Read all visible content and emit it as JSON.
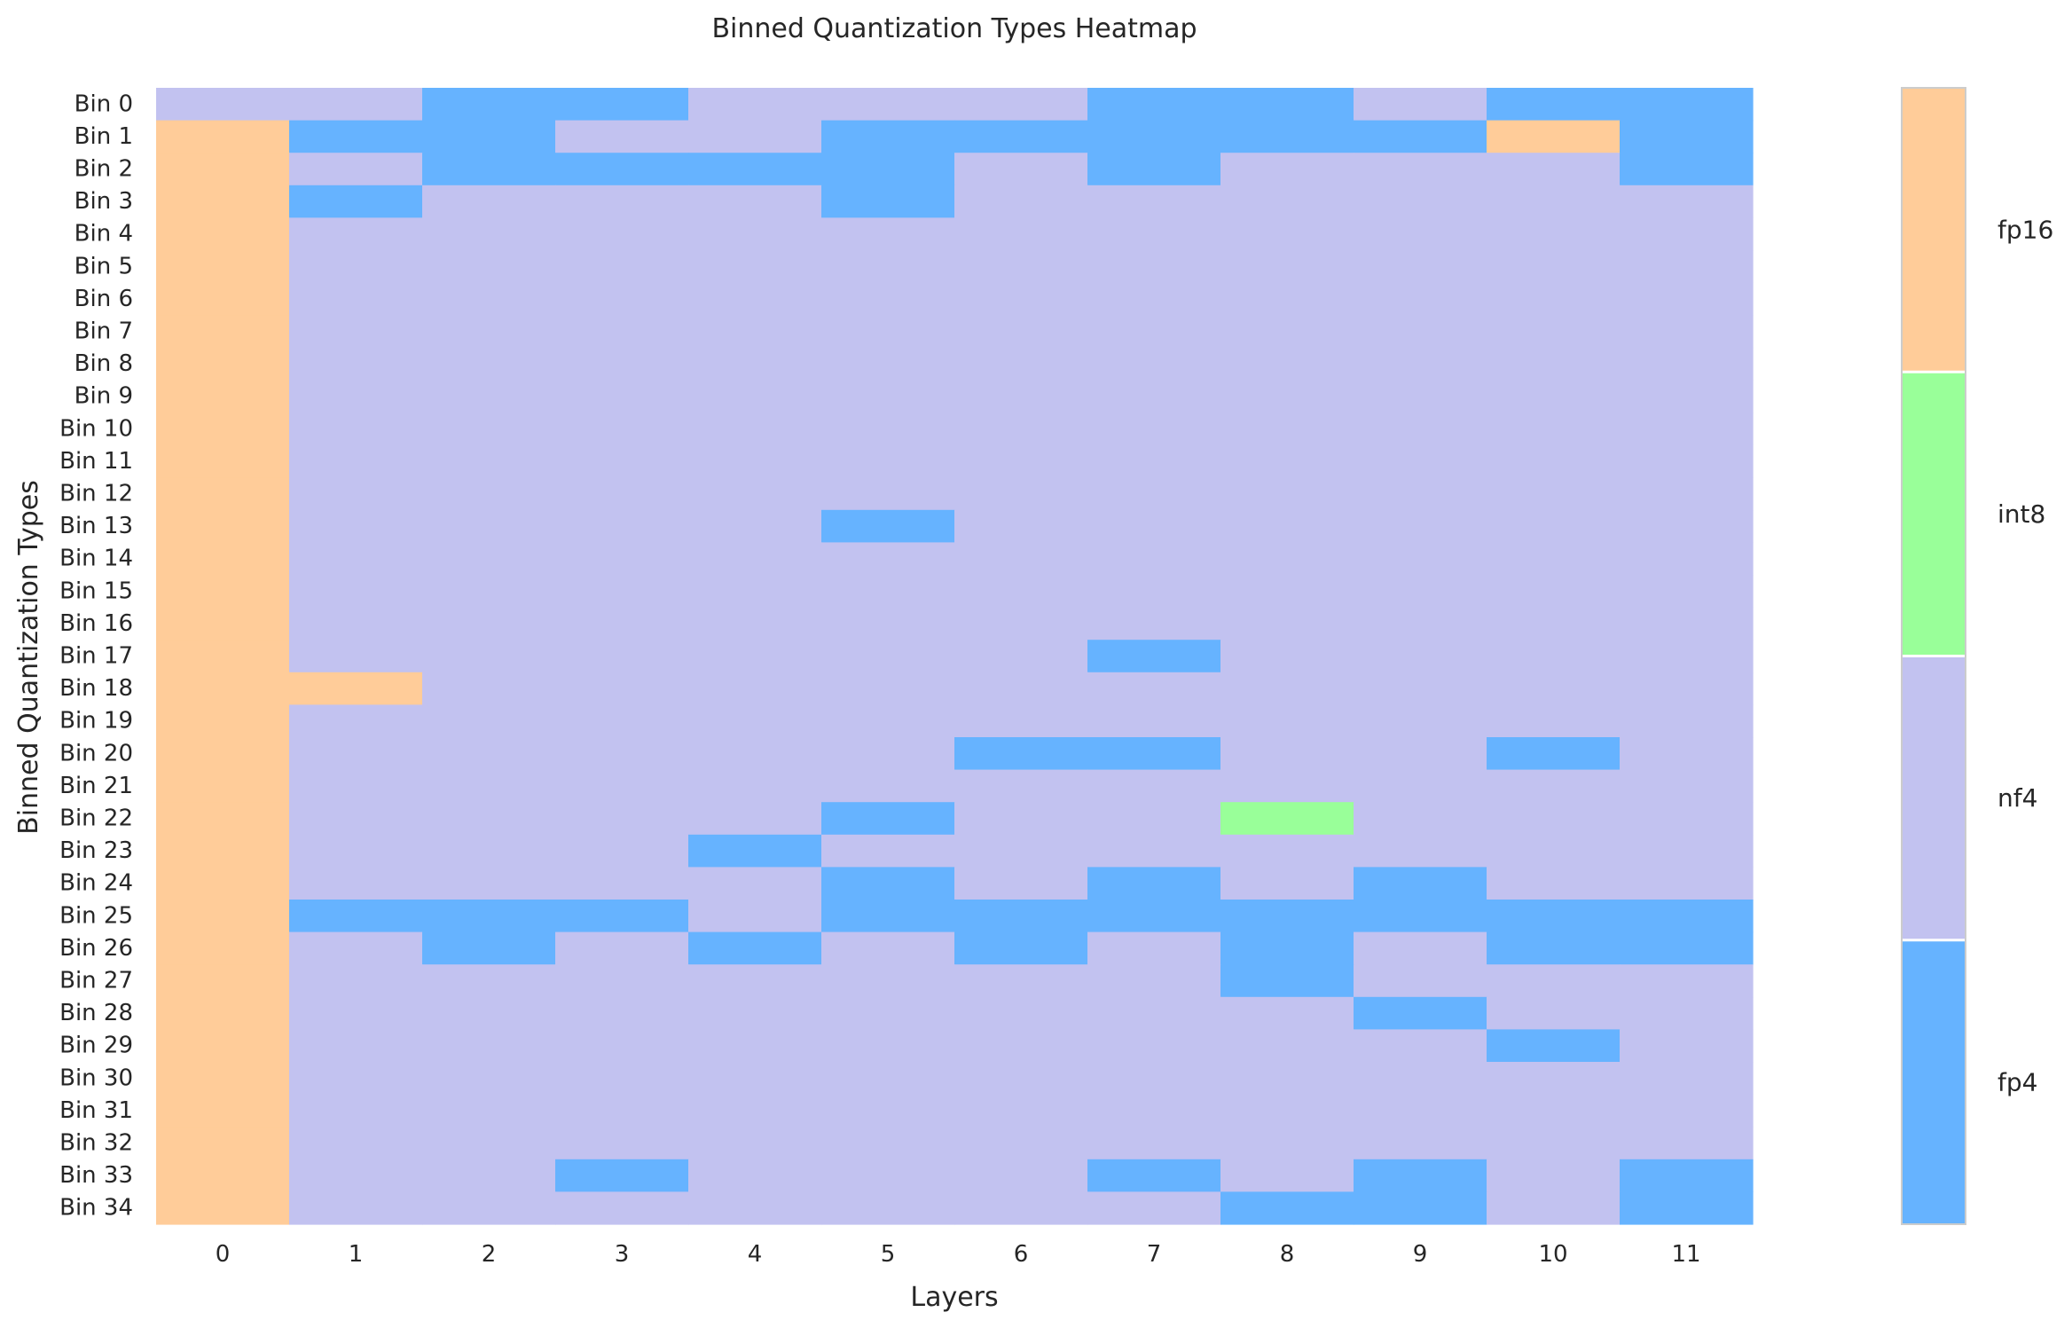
{
  "chart_data": {
    "type": "heatmap",
    "title": "Binned Quantization Types Heatmap",
    "xlabel": "Layers",
    "ylabel": "Binned Quantization Types",
    "x_categories": [
      "0",
      "1",
      "2",
      "3",
      "4",
      "5",
      "6",
      "7",
      "8",
      "9",
      "10",
      "11"
    ],
    "y_categories": [
      "Bin 0",
      "Bin 1",
      "Bin 2",
      "Bin 3",
      "Bin 4",
      "Bin 5",
      "Bin 6",
      "Bin 7",
      "Bin 8",
      "Bin 9",
      "Bin 10",
      "Bin 11",
      "Bin 12",
      "Bin 13",
      "Bin 14",
      "Bin 15",
      "Bin 16",
      "Bin 17",
      "Bin 18",
      "Bin 19",
      "Bin 20",
      "Bin 21",
      "Bin 22",
      "Bin 23",
      "Bin 24",
      "Bin 25",
      "Bin 26",
      "Bin 27",
      "Bin 28",
      "Bin 29",
      "Bin 30",
      "Bin 31",
      "Bin 32",
      "Bin 33",
      "Bin 34"
    ],
    "legend": {
      "placement": "right",
      "entries": [
        {
          "label": "fp16",
          "color": "#ffcc99"
        },
        {
          "label": "int8",
          "color": "#99ff99"
        },
        {
          "label": "nf4",
          "color": "#c2c2f0"
        },
        {
          "label": "fp4",
          "color": "#66b3ff"
        }
      ]
    },
    "grid": false,
    "values": [
      [
        "nf4",
        "nf4",
        "fp4",
        "fp4",
        "nf4",
        "nf4",
        "nf4",
        "fp4",
        "fp4",
        "nf4",
        "fp4",
        "fp4"
      ],
      [
        "fp16",
        "fp4",
        "fp4",
        "nf4",
        "nf4",
        "fp4",
        "fp4",
        "fp4",
        "fp4",
        "fp4",
        "fp16",
        "fp4"
      ],
      [
        "fp16",
        "nf4",
        "fp4",
        "fp4",
        "fp4",
        "fp4",
        "nf4",
        "fp4",
        "nf4",
        "nf4",
        "nf4",
        "fp4"
      ],
      [
        "fp16",
        "fp4",
        "nf4",
        "nf4",
        "nf4",
        "fp4",
        "nf4",
        "nf4",
        "nf4",
        "nf4",
        "nf4",
        "nf4"
      ],
      [
        "fp16",
        "nf4",
        "nf4",
        "nf4",
        "nf4",
        "nf4",
        "nf4",
        "nf4",
        "nf4",
        "nf4",
        "nf4",
        "nf4"
      ],
      [
        "fp16",
        "nf4",
        "nf4",
        "nf4",
        "nf4",
        "nf4",
        "nf4",
        "nf4",
        "nf4",
        "nf4",
        "nf4",
        "nf4"
      ],
      [
        "fp16",
        "nf4",
        "nf4",
        "nf4",
        "nf4",
        "nf4",
        "nf4",
        "nf4",
        "nf4",
        "nf4",
        "nf4",
        "nf4"
      ],
      [
        "fp16",
        "nf4",
        "nf4",
        "nf4",
        "nf4",
        "nf4",
        "nf4",
        "nf4",
        "nf4",
        "nf4",
        "nf4",
        "nf4"
      ],
      [
        "fp16",
        "nf4",
        "nf4",
        "nf4",
        "nf4",
        "nf4",
        "nf4",
        "nf4",
        "nf4",
        "nf4",
        "nf4",
        "nf4"
      ],
      [
        "fp16",
        "nf4",
        "nf4",
        "nf4",
        "nf4",
        "nf4",
        "nf4",
        "nf4",
        "nf4",
        "nf4",
        "nf4",
        "nf4"
      ],
      [
        "fp16",
        "nf4",
        "nf4",
        "nf4",
        "nf4",
        "nf4",
        "nf4",
        "nf4",
        "nf4",
        "nf4",
        "nf4",
        "nf4"
      ],
      [
        "fp16",
        "nf4",
        "nf4",
        "nf4",
        "nf4",
        "nf4",
        "nf4",
        "nf4",
        "nf4",
        "nf4",
        "nf4",
        "nf4"
      ],
      [
        "fp16",
        "nf4",
        "nf4",
        "nf4",
        "nf4",
        "nf4",
        "nf4",
        "nf4",
        "nf4",
        "nf4",
        "nf4",
        "nf4"
      ],
      [
        "fp16",
        "nf4",
        "nf4",
        "nf4",
        "nf4",
        "fp4",
        "nf4",
        "nf4",
        "nf4",
        "nf4",
        "nf4",
        "nf4"
      ],
      [
        "fp16",
        "nf4",
        "nf4",
        "nf4",
        "nf4",
        "nf4",
        "nf4",
        "nf4",
        "nf4",
        "nf4",
        "nf4",
        "nf4"
      ],
      [
        "fp16",
        "nf4",
        "nf4",
        "nf4",
        "nf4",
        "nf4",
        "nf4",
        "nf4",
        "nf4",
        "nf4",
        "nf4",
        "nf4"
      ],
      [
        "fp16",
        "nf4",
        "nf4",
        "nf4",
        "nf4",
        "nf4",
        "nf4",
        "nf4",
        "nf4",
        "nf4",
        "nf4",
        "nf4"
      ],
      [
        "fp16",
        "nf4",
        "nf4",
        "nf4",
        "nf4",
        "nf4",
        "nf4",
        "fp4",
        "nf4",
        "nf4",
        "nf4",
        "nf4"
      ],
      [
        "fp16",
        "fp16",
        "nf4",
        "nf4",
        "nf4",
        "nf4",
        "nf4",
        "nf4",
        "nf4",
        "nf4",
        "nf4",
        "nf4"
      ],
      [
        "fp16",
        "nf4",
        "nf4",
        "nf4",
        "nf4",
        "nf4",
        "nf4",
        "nf4",
        "nf4",
        "nf4",
        "nf4",
        "nf4"
      ],
      [
        "fp16",
        "nf4",
        "nf4",
        "nf4",
        "nf4",
        "nf4",
        "fp4",
        "fp4",
        "nf4",
        "nf4",
        "fp4",
        "nf4"
      ],
      [
        "fp16",
        "nf4",
        "nf4",
        "nf4",
        "nf4",
        "nf4",
        "nf4",
        "nf4",
        "nf4",
        "nf4",
        "nf4",
        "nf4"
      ],
      [
        "fp16",
        "nf4",
        "nf4",
        "nf4",
        "nf4",
        "fp4",
        "nf4",
        "nf4",
        "int8",
        "nf4",
        "nf4",
        "nf4"
      ],
      [
        "fp16",
        "nf4",
        "nf4",
        "nf4",
        "fp4",
        "nf4",
        "nf4",
        "nf4",
        "nf4",
        "nf4",
        "nf4",
        "nf4"
      ],
      [
        "fp16",
        "nf4",
        "nf4",
        "nf4",
        "nf4",
        "fp4",
        "nf4",
        "fp4",
        "nf4",
        "fp4",
        "nf4",
        "nf4"
      ],
      [
        "fp16",
        "fp4",
        "fp4",
        "fp4",
        "nf4",
        "fp4",
        "fp4",
        "fp4",
        "fp4",
        "fp4",
        "fp4",
        "fp4"
      ],
      [
        "fp16",
        "nf4",
        "fp4",
        "nf4",
        "fp4",
        "nf4",
        "fp4",
        "nf4",
        "fp4",
        "nf4",
        "fp4",
        "fp4"
      ],
      [
        "fp16",
        "nf4",
        "nf4",
        "nf4",
        "nf4",
        "nf4",
        "nf4",
        "nf4",
        "fp4",
        "nf4",
        "nf4",
        "nf4"
      ],
      [
        "fp16",
        "nf4",
        "nf4",
        "nf4",
        "nf4",
        "nf4",
        "nf4",
        "nf4",
        "nf4",
        "fp4",
        "nf4",
        "nf4"
      ],
      [
        "fp16",
        "nf4",
        "nf4",
        "nf4",
        "nf4",
        "nf4",
        "nf4",
        "nf4",
        "nf4",
        "nf4",
        "fp4",
        "nf4"
      ],
      [
        "fp16",
        "nf4",
        "nf4",
        "nf4",
        "nf4",
        "nf4",
        "nf4",
        "nf4",
        "nf4",
        "nf4",
        "nf4",
        "nf4"
      ],
      [
        "fp16",
        "nf4",
        "nf4",
        "nf4",
        "nf4",
        "nf4",
        "nf4",
        "nf4",
        "nf4",
        "nf4",
        "nf4",
        "nf4"
      ],
      [
        "fp16",
        "nf4",
        "nf4",
        "nf4",
        "nf4",
        "nf4",
        "nf4",
        "nf4",
        "nf4",
        "nf4",
        "nf4",
        "nf4"
      ],
      [
        "fp16",
        "nf4",
        "nf4",
        "fp4",
        "nf4",
        "nf4",
        "nf4",
        "fp4",
        "nf4",
        "fp4",
        "nf4",
        "fp4"
      ],
      [
        "fp16",
        "nf4",
        "nf4",
        "nf4",
        "nf4",
        "nf4",
        "nf4",
        "nf4",
        "fp4",
        "fp4",
        "nf4",
        "fp4"
      ]
    ]
  }
}
